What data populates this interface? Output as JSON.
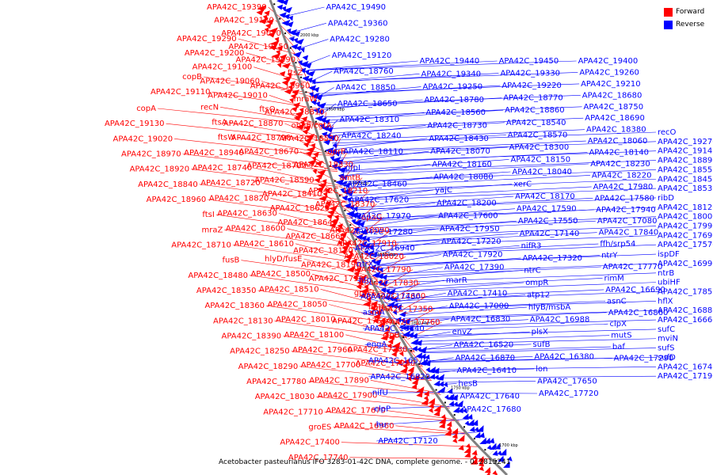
{
  "caption": "Acetobacter pasteurianus IFO 3283-01-42C DNA, complete genome. - 0..2815241",
  "legend": [
    {
      "label": "Forward",
      "color": "#ff0000"
    },
    {
      "label": "Reverse",
      "color": "#0000ff"
    }
  ],
  "colors": {
    "forward": "#ff0000",
    "reverse": "#0000ff",
    "backbone": "#808080"
  },
  "ticks": [
    {
      "label": "2000 kbp"
    },
    {
      "label": "1950 kbp"
    },
    {
      "label": "1900 kbp"
    },
    {
      "label": "1850 kbp"
    },
    {
      "label": "1800 kbp"
    },
    {
      "label": "1750 kbp"
    },
    {
      "label": "1700 kbp"
    }
  ],
  "forward_labels": [
    "APA42C_19390",
    "APA42C_19290",
    "copB",
    "copA",
    "APA42C_19180",
    "APA42C_19200",
    "APA42C_19110",
    "APA42C_19130",
    "APA42C_19070",
    "APA42C_19100",
    "recN",
    "APA42C_19020",
    "APA42C_19150",
    "APA42C_19060",
    "ftsA",
    "APA42C_18970",
    "APA42C_19090",
    "APA42C_19010",
    "ftsW",
    "APA42C_18920",
    "ftsZ",
    "ftsQ",
    "APA42C_18940",
    "APA42C_18840",
    "APA42C_18950",
    "APA42C_18870",
    "APA42C_18740",
    "APA42C_18960",
    "mraW",
    "APA42C_18790",
    "APA42C_18720",
    "ftsI",
    "APA42C_18810",
    "APA42C_18670",
    "APA42C_18820",
    "mraZ",
    "obgE/cgtA",
    "APA42C_18700",
    "APA42C_18630",
    "APA42C_18710",
    "APA42C_18520",
    "APA42C_18590",
    "APA42C_18600",
    "fusB",
    "oprB",
    "APA42C_18410",
    "APA42C_18610",
    "APA42C_18480",
    "APA42C_18330",
    "APA42C_18620",
    "hlyD/fusE",
    "APA42C_18350",
    "amtB",
    "APA42C_18640",
    "APA42C_18500",
    "APA42C_18360",
    "APA42C_18210",
    "APA42C_18660",
    "APA42C_18510",
    "APA42C_18130",
    "APA42C_18370",
    "APA42C_18180",
    "APA42C_18050",
    "APA42C_18390",
    "apaG",
    "APA42C_18190",
    "APA42C_18010",
    "APA42C_18250",
    "APA42C_18090",
    "APA42C_17930",
    "APA42C_18100",
    "APA42C_18290",
    "APA42C_17910",
    "groEL",
    "APA42C_17960",
    "APA42C_17780",
    "APA42C_18020",
    "flbH",
    "APA42C_17700",
    "APA42C_18030",
    "APA42C_17790",
    "APA42C_17560",
    "APA42C_17890",
    "APA42C_17710",
    "APA42C_17830",
    "clpB",
    "APA42C_17900",
    "groES",
    "APA42C_17660",
    "APA42C_17380",
    "APA42C_17670",
    "APA42C_17400",
    "APA42C_17350",
    "APA42C_17260",
    "APA42C_16960",
    "APA42C_17740",
    "APA42C_17760"
  ],
  "reverse_labels": [
    "APA42C_19490",
    "APA42C_19440",
    "APA42C_19450",
    "APA42C_19400",
    "recO",
    "APA42C_19360",
    "APA42C_19340",
    "APA42C_19330",
    "APA42C_19260",
    "APA42C_19270",
    "APA42C_19280",
    "APA42C_19250",
    "APA42C_19220",
    "APA42C_19210",
    "APA42C_19140",
    "APA42C_19120",
    "APA42C_18780",
    "APA42C_18770",
    "APA42C_18680",
    "APA42C_18890",
    "APA42C_18760",
    "APA42C_18560",
    "APA42C_18860",
    "APA42C_18750",
    "APA42C_18550",
    "APA42C_18850",
    "APA42C_18730",
    "APA42C_18540",
    "APA42C_18690",
    "APA42C_18450",
    "APA42C_18650",
    "APA42C_18430",
    "APA42C_18570",
    "APA42C_18380",
    "APA42C_18530",
    "APA42C_18310",
    "APA42C_18070",
    "APA42C_18300",
    "APA42C_18060",
    "ribD",
    "APA42C_18240",
    "APA42C_18160",
    "APA42C_18150",
    "APA42C_18140",
    "APA42C_18120",
    "APA42C_18110",
    "APA42C_18080",
    "APA42C_18040",
    "APA42C_18230",
    "APA42C_18000",
    "pfpI",
    "yajC",
    "xerC",
    "APA42C_18220",
    "APA42C_17990",
    "APA42C_18460",
    "APA42C_18200",
    "APA42C_18170",
    "APA42C_17980",
    "APA42C_17690",
    "APA42C_17620",
    "APA42C_17600",
    "APA42C_17590",
    "APA42C_17580",
    "APA42C_17570",
    "APA42C_17970",
    "APA42C_17950",
    "APA42C_17550",
    "APA42C_17940",
    "ispDF",
    "APA42C_17280",
    "APA42C_17220",
    "APA42C_17140",
    "APA42C_17080",
    "APA42C_16990",
    "APA42C_16940",
    "APA42C_17920",
    "nifR3",
    "APA42C_17840",
    "ntrB",
    "ntrX",
    "APA42C_17390",
    "APA42C_17320",
    "ffh/srp54",
    "ubiHF",
    "hfq",
    "marR",
    "ntrC",
    "ntrY",
    "APA42C_17850",
    "APA42C_17430",
    "APA42C_17410",
    "ompR",
    "APA42C_17770",
    "hflX",
    "asmA",
    "APA42C_17000",
    "atp12",
    "rimM",
    "APA42C_16880",
    "APA42C_16840",
    "APA42C_16830",
    "hlyB/msbA",
    "APA42C_16690",
    "APA42C_16660",
    "engA",
    "envZ",
    "APA42C_16988",
    "asnC",
    "sufC",
    "APA42C_16570",
    "APA42C_16520",
    "plsX",
    "APA42C_16860",
    "mviN",
    "APA42C_16820",
    "APA42C_16870",
    "sufB",
    "clpX",
    "sufS",
    "nifU",
    "APA42C_16410",
    "APA42C_16380",
    "mutS",
    "sufD",
    "clpP",
    "hesB",
    "lon",
    "baf",
    "APA42C_16740",
    "hu",
    "APA42C_17640",
    "APA42C_17650",
    "APA42C_17290",
    "APA42C_17190",
    "APA42C_17120",
    "APA42C_17680",
    "APA42C_17720"
  ]
}
